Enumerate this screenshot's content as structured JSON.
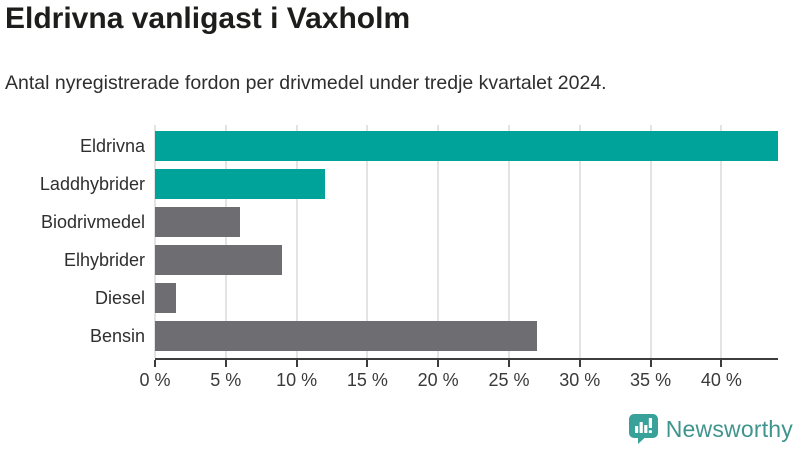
{
  "chart_data": {
    "type": "bar",
    "orientation": "horizontal",
    "title": "Eldrivna vanligast i Vaxholm",
    "subtitle": "Antal nyregistrerade fordon per drivmedel under tredje kvartalet 2024.",
    "categories": [
      "Eldrivna",
      "Laddhybrider",
      "Biodrivmedel",
      "Elhybrider",
      "Diesel",
      "Bensin"
    ],
    "values": [
      44,
      12,
      6,
      9,
      1.5,
      27
    ],
    "unit": "%",
    "xlabel": "",
    "ylabel": "",
    "xlim": [
      0,
      44
    ],
    "xticks": [
      0,
      5,
      10,
      15,
      20,
      25,
      30,
      35,
      40
    ],
    "tick_suffix": " %",
    "grid": true,
    "legend": "none",
    "bar_colors": [
      "#00a399",
      "#00a399",
      "#6d6d72",
      "#6d6d72",
      "#6d6d72",
      "#6d6d72"
    ],
    "highlight_color": "#00a399",
    "default_color": "#6d6d72",
    "gridline_color": "#e3e3e3",
    "axis_color": "#3d3d3d"
  },
  "footer": {
    "brand": "Newsworthy",
    "brand_color": "#3f948e",
    "icon_color": "#38a19a"
  }
}
